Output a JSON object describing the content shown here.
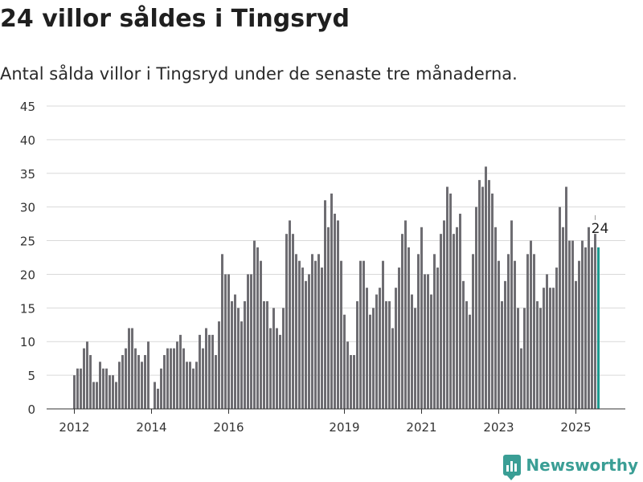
{
  "header": {
    "title": "24 villor såldes i Tingsryd",
    "subtitle": "Antal sålda villor i Tingsryd under de senaste tre månaderna."
  },
  "brand": {
    "name": "Newsworthy",
    "color": "#3a9e95"
  },
  "colors": {
    "bar": "#6e6d72",
    "highlight": "#1e9a8f",
    "grid": "#d9d9d9",
    "axis": "#333333"
  },
  "chart_data": {
    "type": "bar",
    "title": "24 villor såldes i Tingsryd",
    "subtitle": "Antal sålda villor i Tingsryd under de senaste tre månaderna.",
    "xlabel": "",
    "ylabel": "",
    "ylim": [
      0,
      45
    ],
    "yticks": [
      0,
      5,
      10,
      15,
      20,
      25,
      30,
      35,
      40,
      45
    ],
    "xticks": [
      "2012",
      "2014",
      "2016",
      "2019",
      "2021",
      "2023",
      "2025"
    ],
    "grid": true,
    "annotation": {
      "label": "24",
      "target": "last"
    },
    "values": [
      5,
      6,
      6,
      9,
      10,
      8,
      4,
      4,
      7,
      6,
      6,
      5,
      5,
      4,
      7,
      8,
      9,
      12,
      12,
      9,
      8,
      7,
      8,
      10,
      0,
      4,
      3,
      6,
      8,
      9,
      9,
      9,
      10,
      11,
      9,
      7,
      7,
      6,
      7,
      11,
      9,
      12,
      11,
      11,
      8,
      13,
      23,
      20,
      20,
      16,
      17,
      15,
      13,
      16,
      20,
      20,
      25,
      24,
      22,
      16,
      16,
      12,
      15,
      12,
      11,
      15,
      26,
      28,
      26,
      23,
      22,
      21,
      19,
      20,
      23,
      22,
      23,
      21,
      31,
      27,
      32,
      29,
      28,
      22,
      14,
      10,
      8,
      8,
      16,
      22,
      22,
      18,
      14,
      15,
      17,
      18,
      22,
      16,
      16,
      12,
      18,
      21,
      26,
      28,
      24,
      17,
      15,
      23,
      27,
      20,
      20,
      17,
      23,
      21,
      26,
      28,
      33,
      32,
      26,
      27,
      29,
      19,
      16,
      14,
      23,
      30,
      34,
      33,
      36,
      34,
      32,
      27,
      22,
      16,
      19,
      23,
      28,
      22,
      15,
      9,
      15,
      23,
      25,
      23,
      16,
      15,
      18,
      20,
      18,
      18,
      21,
      30,
      27,
      33,
      25,
      25,
      19,
      22,
      25,
      24,
      27,
      24,
      26,
      24
    ]
  }
}
